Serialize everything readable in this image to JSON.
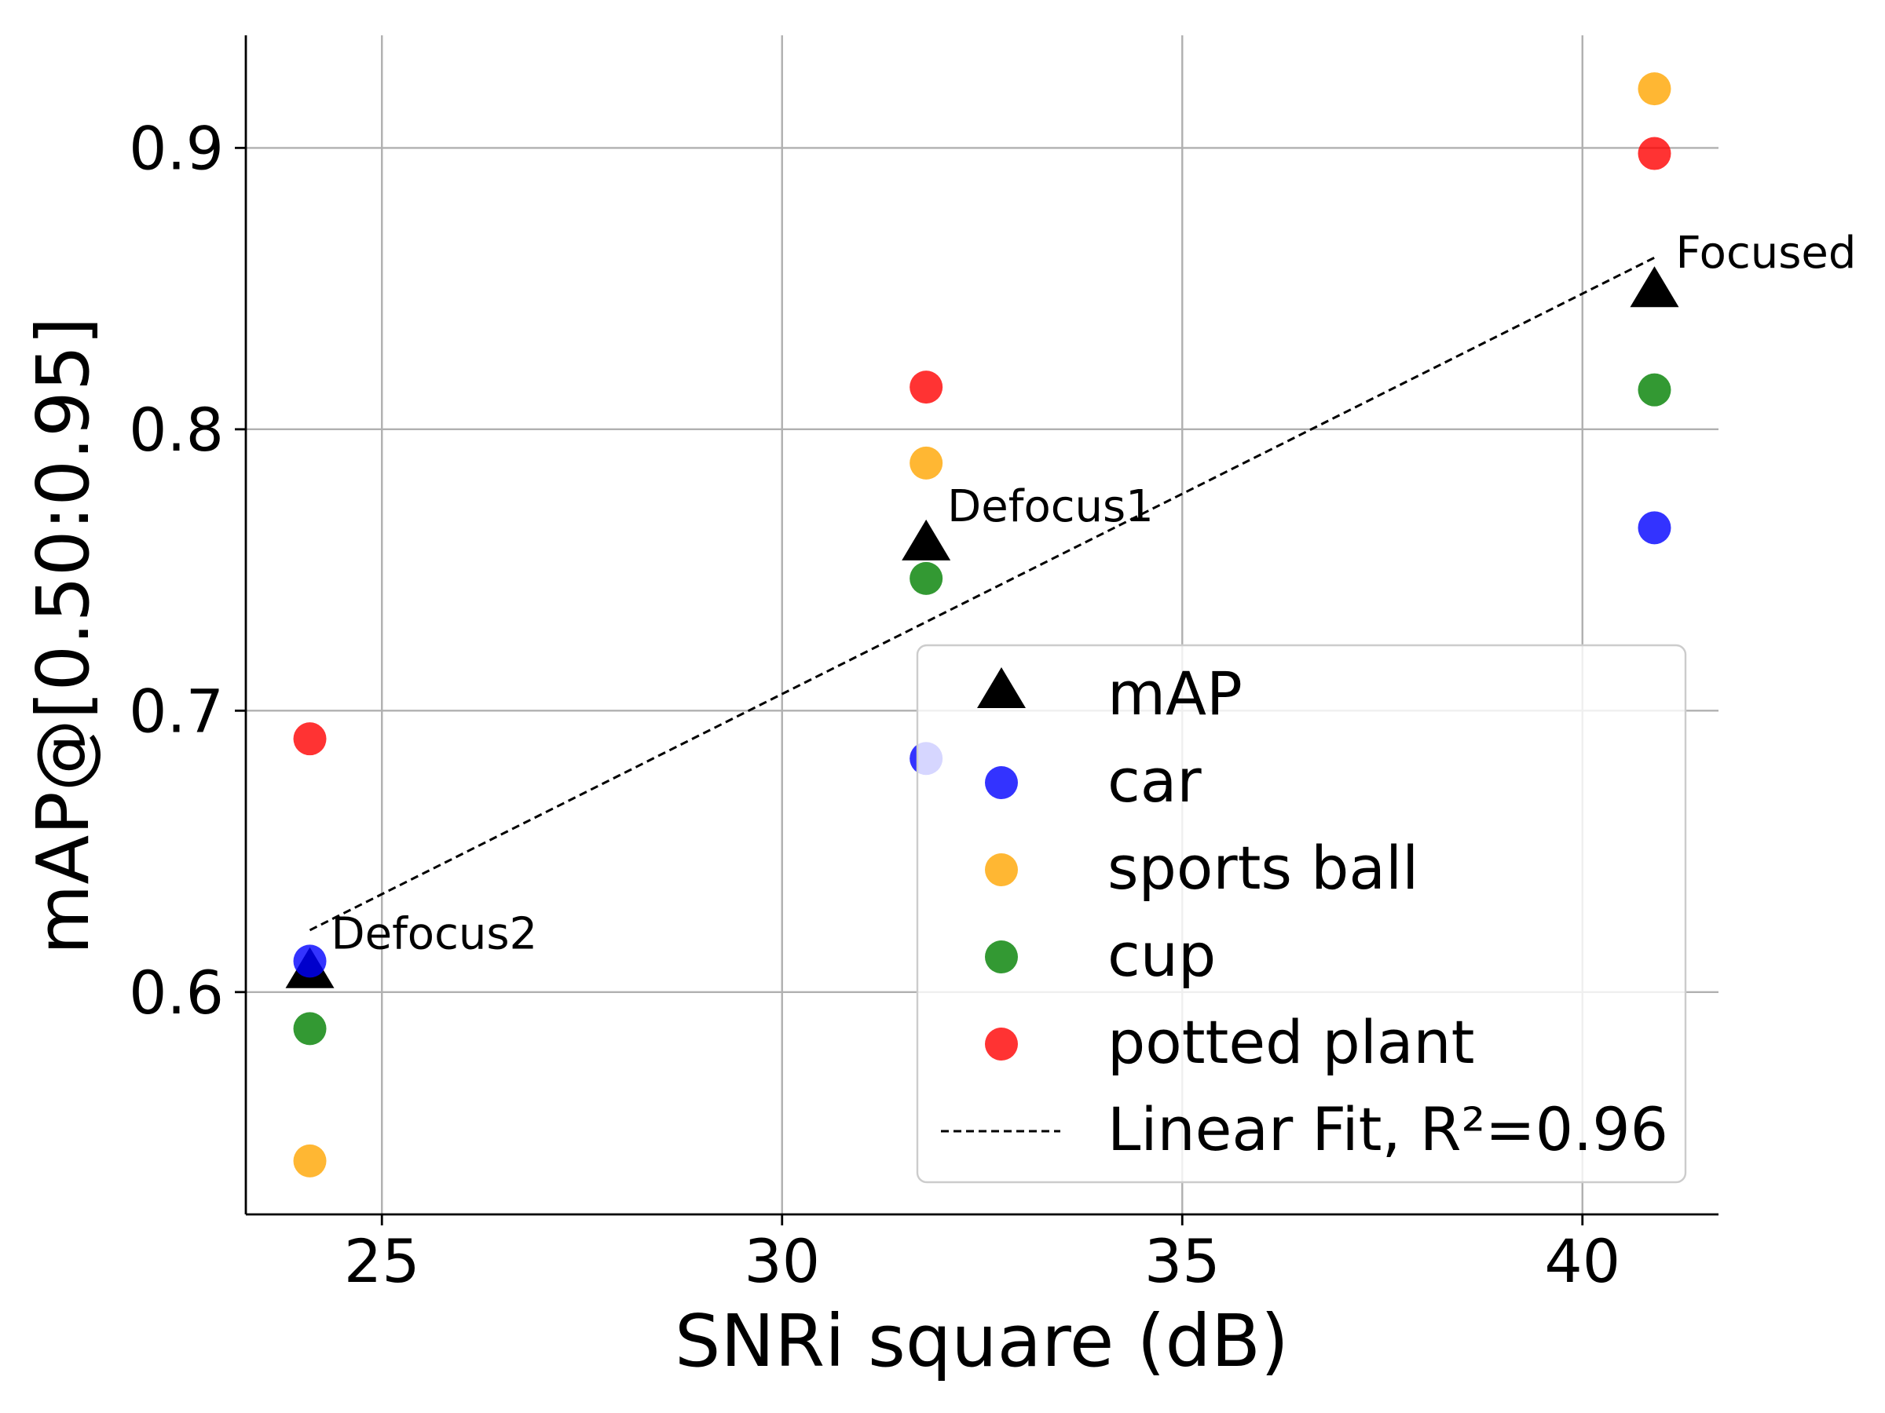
{
  "chart_data": {
    "type": "scatter",
    "xlabel": "SNRi square (dB)",
    "ylabel": "mAP@[0.50:0.95]",
    "xlim": [
      23.3,
      41.7
    ],
    "ylim": [
      0.521,
      0.94
    ],
    "x_ticks": [
      25,
      30,
      35,
      40
    ],
    "y_ticks": [
      0.6,
      0.7,
      0.8,
      0.9
    ],
    "grid": true,
    "legend_position": "lower right",
    "x": [
      24.1,
      31.8,
      40.9
    ],
    "point_labels": [
      "Defocus2",
      "Defocus1",
      "Focused"
    ],
    "series": [
      {
        "name": "mAP",
        "marker": "triangle",
        "color": "#000000",
        "values": [
          0.607,
          0.759,
          0.849
        ]
      },
      {
        "name": "car",
        "marker": "circle",
        "color": "#0000ff",
        "values": [
          0.611,
          0.683,
          0.765
        ]
      },
      {
        "name": "sports ball",
        "marker": "circle",
        "color": "#ffa500",
        "values": [
          0.54,
          0.788,
          0.921
        ]
      },
      {
        "name": "cup",
        "marker": "circle",
        "color": "#008000",
        "values": [
          0.587,
          0.747,
          0.814
        ]
      },
      {
        "name": "potted plant",
        "marker": "circle",
        "color": "#ff0000",
        "values": [
          0.69,
          0.815,
          0.898
        ]
      }
    ],
    "fit_line": {
      "name": "Linear Fit, R²=0.96",
      "style": "dashed",
      "color": "#000000",
      "x": [
        24.1,
        40.9
      ],
      "y": [
        0.622,
        0.861
      ]
    }
  }
}
